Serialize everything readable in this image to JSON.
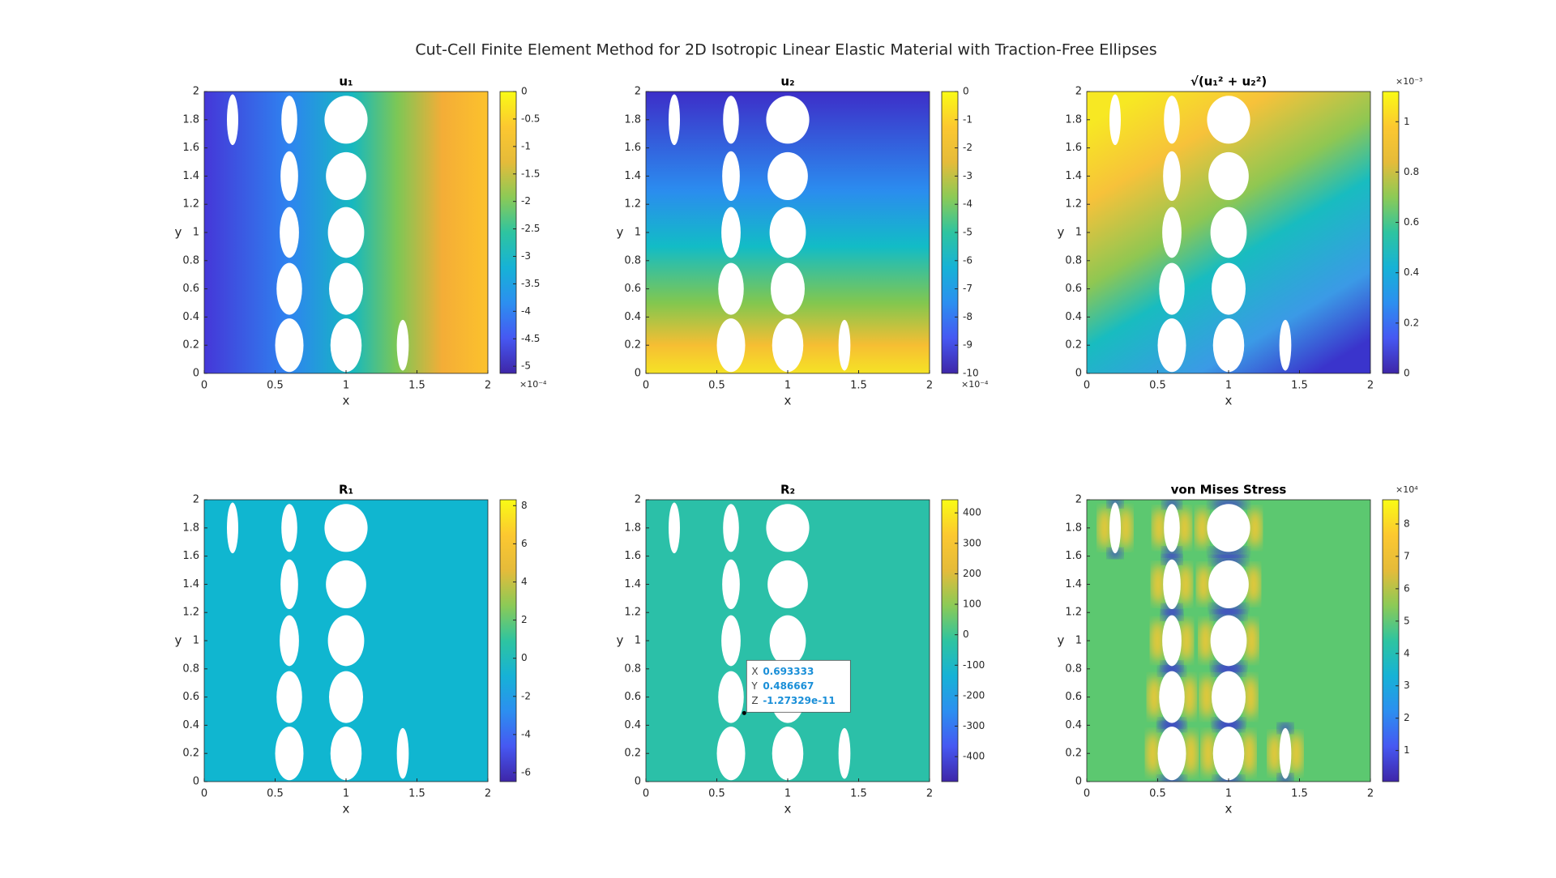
{
  "title": "Cut-Cell Finite Element Method for 2D Isotropic Linear Elastic Material with Traction-Free Ellipses",
  "chart_data": [
    {
      "type": "heatmap",
      "title": "u₁",
      "x_label": "x",
      "y_label": "y",
      "xlim": [
        0,
        2
      ],
      "ylim": [
        0,
        2
      ],
      "xticks": [
        0,
        0.5,
        1,
        1.5,
        2
      ],
      "yticks": [
        0,
        0.2,
        0.4,
        0.6,
        0.8,
        1,
        1.2,
        1.4,
        1.6,
        1.8,
        2
      ],
      "colorbar": {
        "clim": [
          -5.13,
          0
        ],
        "ticks": [
          0,
          -0.5,
          -1,
          -1.5,
          -2,
          -2.5,
          -3,
          -3.5,
          -4,
          -4.5,
          -5
        ],
        "exponent_label": "×10⁻⁴",
        "exponent_position": "bottom"
      }
    },
    {
      "type": "heatmap",
      "title": "u₂",
      "x_label": "x",
      "y_label": "y",
      "xlim": [
        0,
        2
      ],
      "ylim": [
        0,
        2
      ],
      "xticks": [
        0,
        0.5,
        1,
        1.5,
        2
      ],
      "yticks": [
        0,
        0.2,
        0.4,
        0.6,
        0.8,
        1,
        1.2,
        1.4,
        1.6,
        1.8,
        2
      ],
      "colorbar": {
        "clim": [
          -10,
          0
        ],
        "ticks": [
          0,
          -1,
          -2,
          -3,
          -4,
          -5,
          -6,
          -7,
          -8,
          -9,
          -10
        ],
        "exponent_label": "×10⁻⁴",
        "exponent_position": "bottom"
      }
    },
    {
      "type": "heatmap",
      "title": "√(u₁² + u₂²)",
      "x_label": "x",
      "y_label": "y",
      "xlim": [
        0,
        2
      ],
      "ylim": [
        0,
        2
      ],
      "xticks": [
        0,
        0.5,
        1,
        1.5,
        2
      ],
      "yticks": [
        0,
        0.2,
        0.4,
        0.6,
        0.8,
        1,
        1.2,
        1.4,
        1.6,
        1.8,
        2
      ],
      "colorbar": {
        "clim": [
          0,
          1.12
        ],
        "ticks": [
          0,
          0.2,
          0.4,
          0.6,
          0.8,
          1
        ],
        "exponent_label": "×10⁻³",
        "exponent_position": "top"
      }
    },
    {
      "type": "heatmap",
      "title": "R₁",
      "x_label": "x",
      "y_label": "y",
      "xlim": [
        0,
        2
      ],
      "ylim": [
        0,
        2
      ],
      "xticks": [
        0,
        0.5,
        1,
        1.5,
        2
      ],
      "yticks": [
        0,
        0.2,
        0.4,
        0.6,
        0.8,
        1,
        1.2,
        1.4,
        1.6,
        1.8,
        2
      ],
      "colorbar": {
        "clim": [
          -6.47,
          8.31
        ],
        "ticks": [
          -6,
          -4,
          -2,
          0,
          2,
          4,
          6,
          8
        ]
      }
    },
    {
      "type": "heatmap",
      "title": "R₂",
      "x_label": "x",
      "y_label": "y",
      "xlim": [
        0,
        2
      ],
      "ylim": [
        0,
        2
      ],
      "xticks": [
        0,
        0.5,
        1,
        1.5,
        2
      ],
      "yticks": [
        0,
        0.2,
        0.4,
        0.6,
        0.8,
        1,
        1.2,
        1.4,
        1.6,
        1.8,
        2
      ],
      "colorbar": {
        "clim": [
          -482,
          443
        ],
        "ticks": [
          -400,
          -300,
          -200,
          -100,
          0,
          100,
          200,
          300,
          400
        ]
      },
      "datatip": {
        "labels": [
          "X",
          "Y",
          "Z"
        ],
        "values": [
          0.693333,
          0.486667,
          -1.27329e-11
        ]
      }
    },
    {
      "type": "heatmap",
      "title": "von Mises Stress",
      "x_label": "x",
      "y_label": "y",
      "xlim": [
        0,
        2
      ],
      "ylim": [
        0,
        2
      ],
      "xticks": [
        0,
        0.5,
        1,
        1.5,
        2
      ],
      "yticks": [
        0,
        0.2,
        0.4,
        0.6,
        0.8,
        1,
        1.2,
        1.4,
        1.6,
        1.8,
        2
      ],
      "colorbar": {
        "clim": [
          0.04,
          8.75
        ],
        "ticks": [
          1,
          2,
          3,
          4,
          5,
          6,
          7,
          8
        ],
        "exponent_label": "×10⁴",
        "exponent_position": "top"
      }
    }
  ]
}
